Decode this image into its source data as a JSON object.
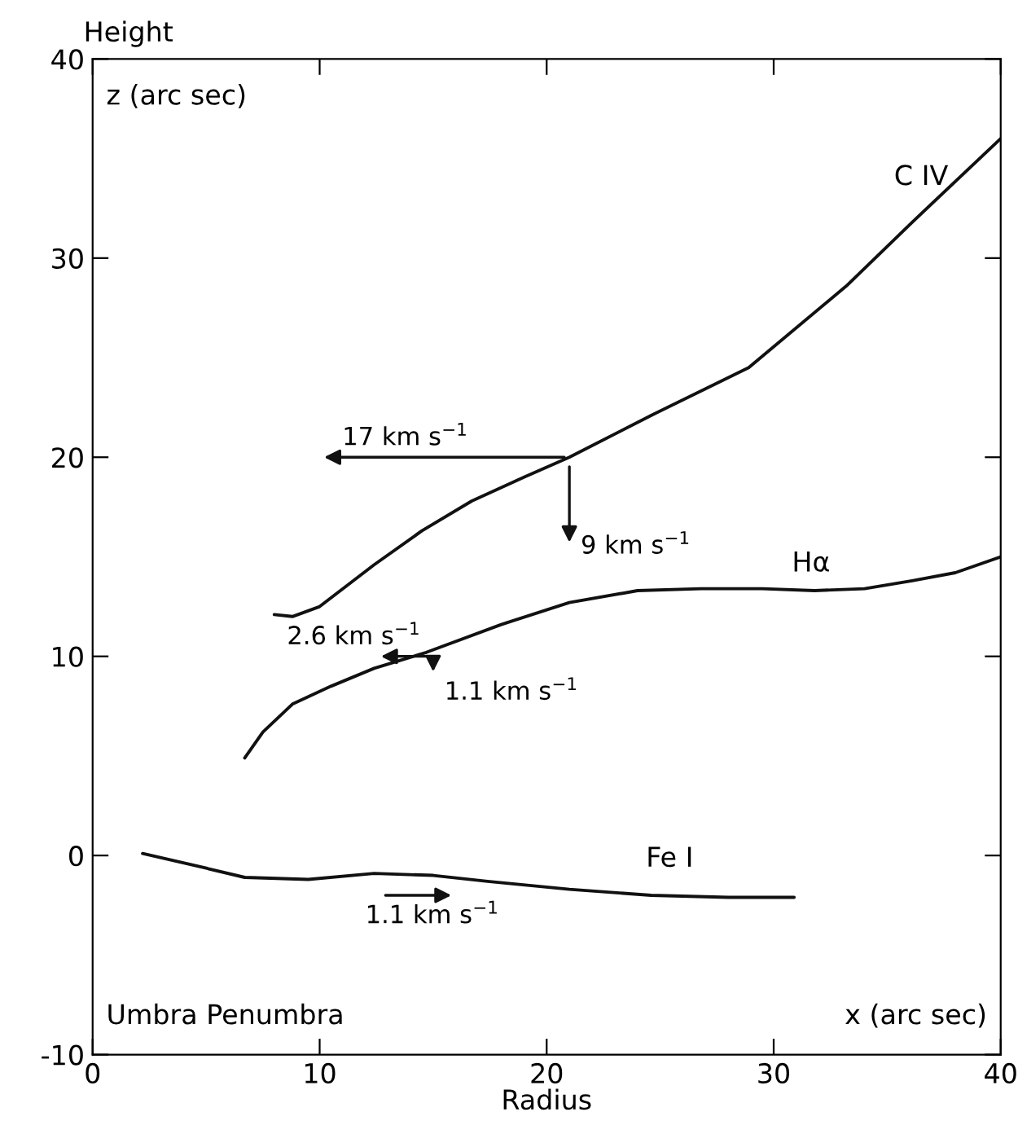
{
  "chart_data": {
    "type": "line",
    "xlabel": "Radius",
    "ylabel": "Height",
    "xlim": [
      0,
      40
    ],
    "ylim": [
      -10,
      40
    ],
    "xticks": [
      0,
      10,
      20,
      30,
      40
    ],
    "yticks": [
      -10,
      0,
      10,
      20,
      30,
      40
    ],
    "grid": false,
    "legend": false,
    "marker": "none",
    "line_style": "solid",
    "series": [
      {
        "name": "C IV",
        "color": "#111111",
        "x": [
          8,
          8.8,
          10,
          12.4,
          14.5,
          16.7,
          19,
          21,
          24.6,
          28.9,
          33.2,
          36.1,
          40
        ],
        "values": [
          12.1,
          12.0,
          12.5,
          14.6,
          16.3,
          17.8,
          19.0,
          20,
          22.1,
          24.5,
          28.6,
          31.8,
          36
        ]
      },
      {
        "name": "Hα",
        "color": "#111111",
        "x": [
          6.7,
          7.5,
          8.8,
          10.5,
          12.4,
          14.7,
          18,
          21,
          24,
          26.8,
          29.5,
          31.8,
          34,
          36.1,
          38,
          40
        ],
        "values": [
          4.9,
          6.2,
          7.6,
          8.5,
          9.4,
          10.2,
          11.6,
          12.7,
          13.3,
          13.4,
          13.4,
          13.3,
          13.4,
          13.8,
          14.2,
          15
        ]
      },
      {
        "name": "Fe I",
        "color": "#111111",
        "x": [
          2.2,
          4.5,
          6.7,
          9.5,
          12.4,
          15,
          17.4,
          21,
          24.6,
          28,
          30.9
        ],
        "values": [
          0.1,
          -0.5,
          -1.1,
          -1.2,
          -0.9,
          -1.0,
          -1.3,
          -1.7,
          -2.0,
          -2.1,
          -2.1
        ]
      }
    ],
    "annotations": [
      "z (arc sec)",
      "x (arc sec)",
      "Umbra Penumbra",
      "17 km s$^{−1}$",
      "9 km s$^{−1}$",
      "2.6 km s$^{−1}$",
      "1.1 km s$^{−1}$",
      "1.1 km s$^{−1}$"
    ]
  }
}
